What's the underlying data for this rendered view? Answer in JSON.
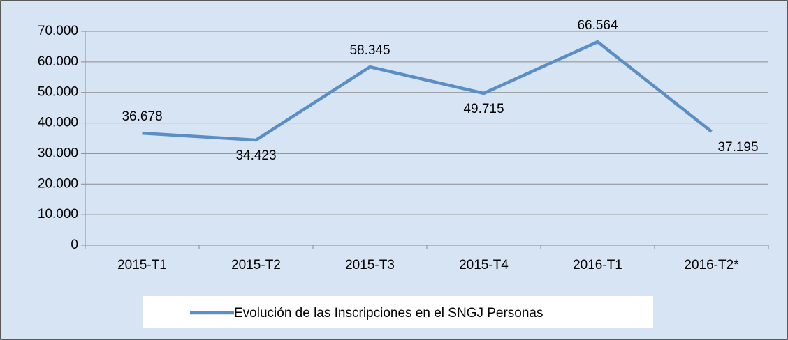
{
  "chart_data": {
    "type": "line",
    "categories": [
      "2015-T1",
      "2015-T2",
      "2015-T3",
      "2015-T4",
      "2016-T1",
      "2016-T2*"
    ],
    "series": [
      {
        "name": "Evolución de las Inscripciones en el SNGJ Personas",
        "color": "#5b8ec4",
        "values": [
          36678,
          34423,
          58345,
          49715,
          66564,
          37195
        ],
        "value_labels": [
          "36.678",
          "34.423",
          "58.345",
          "49.715",
          "66.564",
          "37.195"
        ]
      }
    ],
    "ylim": [
      0,
      70000
    ],
    "yticks": [
      0,
      {
        "value": 10000,
        "label": "10.000"
      },
      {
        "value": 20000,
        "label": "20.000"
      },
      {
        "value": 30000,
        "label": "30.000"
      },
      {
        "value": 40000,
        "label": "40.000"
      },
      {
        "value": 50000,
        "label": "50.000"
      },
      {
        "value": 60000,
        "label": "60.000"
      },
      {
        "value": 70000,
        "label": "70.000"
      }
    ],
    "grid": true,
    "legend": "bottom"
  }
}
